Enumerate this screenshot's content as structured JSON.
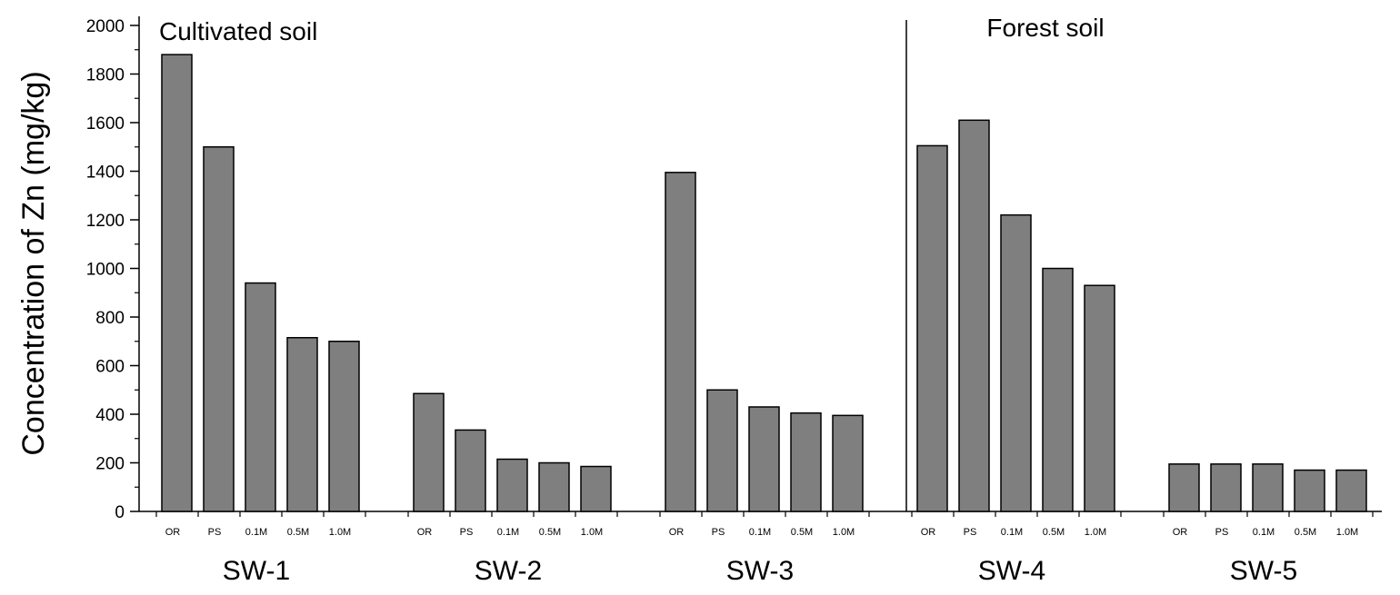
{
  "chart_data": {
    "type": "bar",
    "title": "",
    "ylabel": "Concentration of Zn (mg/kg)",
    "xlabel": "",
    "ylim": [
      0,
      2000
    ],
    "yticks": [
      0,
      200,
      400,
      600,
      800,
      1000,
      1200,
      1400,
      1600,
      1800,
      2000
    ],
    "bar_color": "#7f7f7f",
    "sub_categories": [
      "OR",
      "PS",
      "0.1M",
      "0.5M",
      "1.0M"
    ],
    "groups": [
      {
        "name": "SW-1",
        "values": [
          1880,
          1500,
          940,
          715,
          700
        ]
      },
      {
        "name": "SW-2",
        "values": [
          485,
          335,
          215,
          200,
          185
        ]
      },
      {
        "name": "SW-3",
        "values": [
          1395,
          500,
          430,
          405,
          395
        ]
      },
      {
        "name": "SW-4",
        "values": [
          1505,
          1610,
          1220,
          1000,
          930
        ]
      },
      {
        "name": "SW-5",
        "values": [
          195,
          195,
          195,
          170,
          170
        ]
      }
    ],
    "regions": [
      {
        "label": "Cultivated soil",
        "groups": [
          "SW-1",
          "SW-2",
          "SW-3"
        ]
      },
      {
        "label": "Forest soil",
        "groups": [
          "SW-4",
          "SW-5"
        ]
      }
    ],
    "grid": false,
    "legend": "none"
  }
}
